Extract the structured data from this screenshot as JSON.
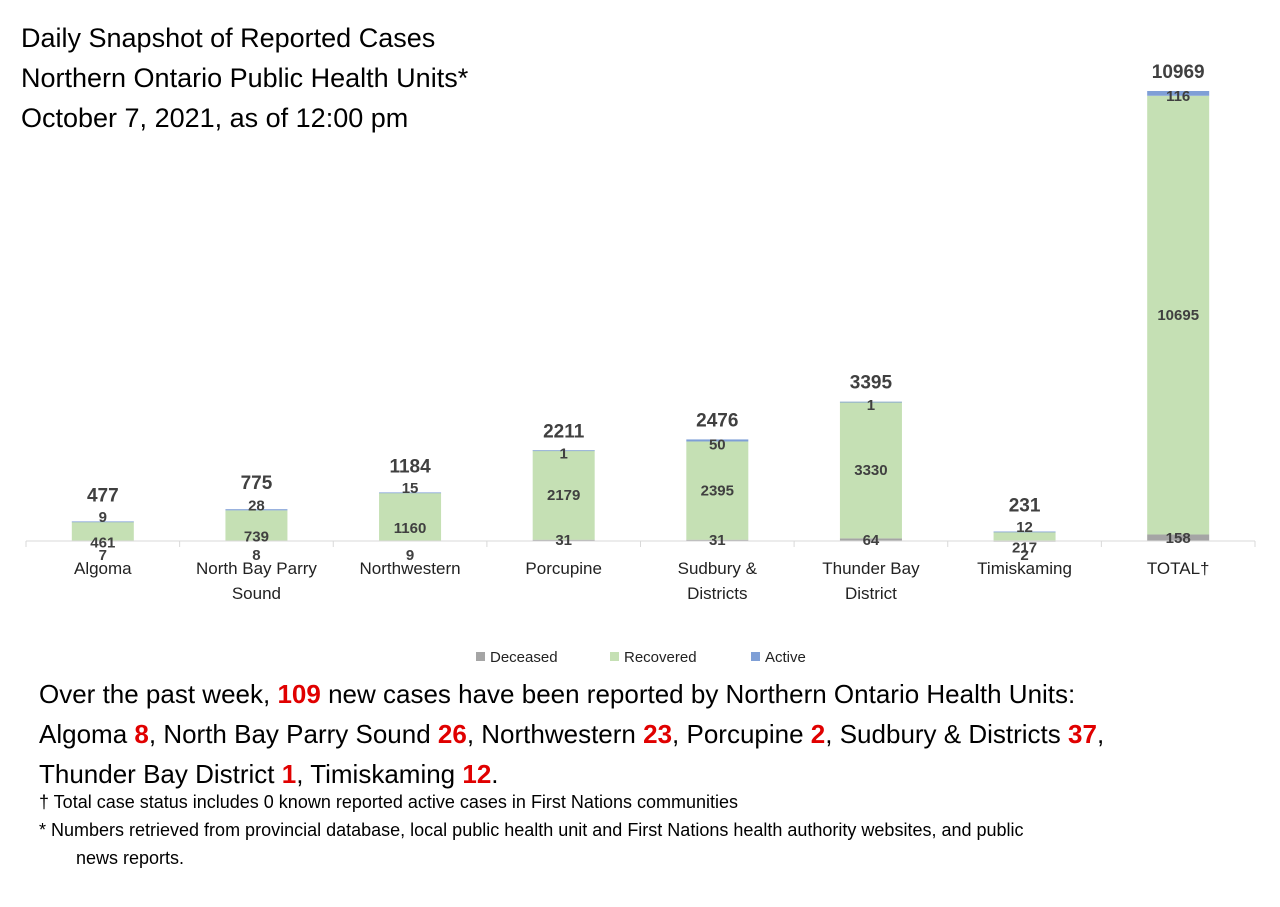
{
  "title": {
    "line1": "Daily Snapshot of Reported Cases",
    "line2": "Northern Ontario Public Health Units*",
    "line3": "October 7, 2021, as of 12:00 pm"
  },
  "chart_data": {
    "type": "bar",
    "stacked": true,
    "categories": [
      [
        "Algoma"
      ],
      [
        "North Bay Parry",
        "Sound"
      ],
      [
        "Northwestern"
      ],
      [
        "Porcupine"
      ],
      [
        "Sudbury &",
        "Districts"
      ],
      [
        "Thunder Bay",
        "District"
      ],
      [
        "Timiskaming"
      ],
      [
        "TOTAL†"
      ]
    ],
    "series": [
      {
        "name": "Deceased",
        "color": "#a5a5a5",
        "values": [
          7,
          8,
          9,
          31,
          31,
          64,
          2,
          158
        ]
      },
      {
        "name": "Recovered",
        "color": "#c5e0b4",
        "values": [
          461,
          739,
          1160,
          2179,
          2395,
          3330,
          217,
          10695
        ]
      },
      {
        "name": "Active",
        "color": "#7f9fd6",
        "values": [
          9,
          28,
          15,
          1,
          50,
          1,
          12,
          116
        ]
      }
    ],
    "totals": [
      477,
      775,
      1184,
      2211,
      2476,
      3395,
      231,
      10969
    ],
    "ylim": [
      0,
      10969
    ],
    "grid": false,
    "legend_position": "bottom"
  },
  "summary": {
    "line1_prefix": "Over the past week, ",
    "line1_count": "109",
    "line1_suffix": " new cases have been reported by Northern Ontario Health Units:",
    "line2": [
      {
        "name": "Algoma ",
        "count": "8",
        "sep": ", "
      },
      {
        "name": "North Bay Parry Sound ",
        "count": "26",
        "sep": ", "
      },
      {
        "name": "Northwestern ",
        "count": "23",
        "sep": ", "
      },
      {
        "name": "Porcupine ",
        "count": "2",
        "sep": ", "
      },
      {
        "name": "Sudbury & Districts ",
        "count": "37",
        "sep": ","
      }
    ],
    "line3": [
      {
        "name": "Thunder Bay District ",
        "count": "1",
        "sep": ", "
      },
      {
        "name": "Timiskaming ",
        "count": "12",
        "sep": "."
      }
    ]
  },
  "footnotes": {
    "dagger": "† Total case status includes 0 known reported active cases in First Nations communities",
    "star_line1": "* Numbers retrieved from provincial database, local public health unit and First Nations health authority websites, and public",
    "star_line2": "news reports."
  }
}
